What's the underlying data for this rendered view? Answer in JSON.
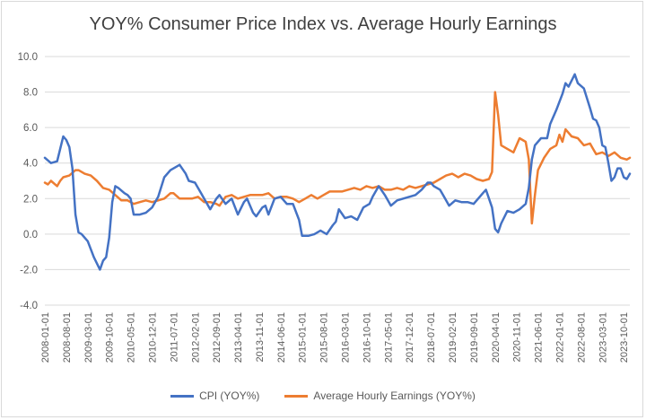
{
  "chart_data": {
    "type": "line",
    "title": "YOY% Consumer Price Index vs. Average Hourly Earnings",
    "xlabel": "",
    "ylabel": "",
    "ylim": [
      -4.0,
      10.0
    ],
    "yticks": [
      -4.0,
      -2.0,
      0.0,
      2.0,
      4.0,
      6.0,
      8.0,
      10.0
    ],
    "ytick_labels": [
      "-4.0",
      "-2.0",
      "0.0",
      "2.0",
      "4.0",
      "6.0",
      "8.0",
      "10.0"
    ],
    "x_start": "2008-01",
    "x_end": "2023-12",
    "xtick_labels": [
      "2008-01-01",
      "2008-08-01",
      "2009-03-01",
      "2009-10-01",
      "2010-05-01",
      "2010-12-01",
      "2011-07-01",
      "2012-02-01",
      "2012-09-01",
      "2013-04-01",
      "2013-11-01",
      "2014-06-01",
      "2015-01-01",
      "2015-08-01",
      "2016-03-01",
      "2016-10-01",
      "2017-05-01",
      "2017-12-01",
      "2018-07-01",
      "2019-02-01",
      "2019-09-01",
      "2020-04-01",
      "2020-11-01",
      "2021-06-01",
      "2022-01-01",
      "2022-08-01",
      "2023-03-01",
      "2023-10-01"
    ],
    "grid": true,
    "legend": "bottom",
    "series": [
      {
        "name": "CPI (YOY%)",
        "color": "#4472c4",
        "points": [
          [
            "2008-01",
            4.3
          ],
          [
            "2008-03",
            4.0
          ],
          [
            "2008-05",
            4.1
          ],
          [
            "2008-07",
            5.5
          ],
          [
            "2008-08",
            5.3
          ],
          [
            "2008-09",
            4.9
          ],
          [
            "2008-10",
            3.7
          ],
          [
            "2008-11",
            1.1
          ],
          [
            "2008-12",
            0.1
          ],
          [
            "2009-01",
            0.0
          ],
          [
            "2009-03",
            -0.4
          ],
          [
            "2009-05",
            -1.3
          ],
          [
            "2009-07",
            -2.0
          ],
          [
            "2009-08",
            -1.5
          ],
          [
            "2009-09",
            -1.3
          ],
          [
            "2009-10",
            -0.2
          ],
          [
            "2009-11",
            1.8
          ],
          [
            "2009-12",
            2.7
          ],
          [
            "2010-01",
            2.6
          ],
          [
            "2010-03",
            2.3
          ],
          [
            "2010-04",
            2.2
          ],
          [
            "2010-05",
            2.0
          ],
          [
            "2010-06",
            1.1
          ],
          [
            "2010-08",
            1.1
          ],
          [
            "2010-10",
            1.2
          ],
          [
            "2010-12",
            1.5
          ],
          [
            "2011-02",
            2.1
          ],
          [
            "2011-04",
            3.2
          ],
          [
            "2011-06",
            3.6
          ],
          [
            "2011-09",
            3.9
          ],
          [
            "2011-11",
            3.4
          ],
          [
            "2011-12",
            3.0
          ],
          [
            "2012-02",
            2.9
          ],
          [
            "2012-04",
            2.3
          ],
          [
            "2012-06",
            1.7
          ],
          [
            "2012-07",
            1.4
          ],
          [
            "2012-09",
            2.0
          ],
          [
            "2012-10",
            2.2
          ],
          [
            "2012-12",
            1.7
          ],
          [
            "2013-02",
            2.0
          ],
          [
            "2013-04",
            1.1
          ],
          [
            "2013-06",
            1.8
          ],
          [
            "2013-07",
            2.0
          ],
          [
            "2013-09",
            1.2
          ],
          [
            "2013-10",
            1.0
          ],
          [
            "2013-12",
            1.5
          ],
          [
            "2014-01",
            1.6
          ],
          [
            "2014-02",
            1.1
          ],
          [
            "2014-04",
            2.0
          ],
          [
            "2014-06",
            2.1
          ],
          [
            "2014-08",
            1.7
          ],
          [
            "2014-10",
            1.7
          ],
          [
            "2014-12",
            0.8
          ],
          [
            "2015-01",
            -0.1
          ],
          [
            "2015-03",
            -0.1
          ],
          [
            "2015-05",
            0.0
          ],
          [
            "2015-07",
            0.2
          ],
          [
            "2015-09",
            0.0
          ],
          [
            "2015-11",
            0.5
          ],
          [
            "2015-12",
            0.7
          ],
          [
            "2016-01",
            1.4
          ],
          [
            "2016-03",
            0.9
          ],
          [
            "2016-05",
            1.0
          ],
          [
            "2016-07",
            0.8
          ],
          [
            "2016-09",
            1.5
          ],
          [
            "2016-11",
            1.7
          ],
          [
            "2016-12",
            2.1
          ],
          [
            "2017-02",
            2.7
          ],
          [
            "2017-04",
            2.2
          ],
          [
            "2017-06",
            1.6
          ],
          [
            "2017-08",
            1.9
          ],
          [
            "2017-10",
            2.0
          ],
          [
            "2017-12",
            2.1
          ],
          [
            "2018-02",
            2.2
          ],
          [
            "2018-04",
            2.5
          ],
          [
            "2018-06",
            2.9
          ],
          [
            "2018-07",
            2.9
          ],
          [
            "2018-08",
            2.7
          ],
          [
            "2018-10",
            2.5
          ],
          [
            "2018-11",
            2.2
          ],
          [
            "2018-12",
            1.9
          ],
          [
            "2019-01",
            1.6
          ],
          [
            "2019-03",
            1.9
          ],
          [
            "2019-05",
            1.8
          ],
          [
            "2019-07",
            1.8
          ],
          [
            "2019-09",
            1.7
          ],
          [
            "2019-11",
            2.1
          ],
          [
            "2019-12",
            2.3
          ],
          [
            "2020-01",
            2.5
          ],
          [
            "2020-03",
            1.5
          ],
          [
            "2020-04",
            0.3
          ],
          [
            "2020-05",
            0.1
          ],
          [
            "2020-06",
            0.6
          ],
          [
            "2020-08",
            1.3
          ],
          [
            "2020-10",
            1.2
          ],
          [
            "2020-12",
            1.4
          ],
          [
            "2021-02",
            1.7
          ],
          [
            "2021-03",
            2.6
          ],
          [
            "2021-04",
            4.2
          ],
          [
            "2021-05",
            5.0
          ],
          [
            "2021-07",
            5.4
          ],
          [
            "2021-09",
            5.4
          ],
          [
            "2021-10",
            6.2
          ],
          [
            "2021-12",
            7.0
          ],
          [
            "2022-02",
            7.9
          ],
          [
            "2022-03",
            8.5
          ],
          [
            "2022-04",
            8.3
          ],
          [
            "2022-06",
            9.0
          ],
          [
            "2022-07",
            8.5
          ],
          [
            "2022-09",
            8.2
          ],
          [
            "2022-11",
            7.1
          ],
          [
            "2022-12",
            6.5
          ],
          [
            "2023-01",
            6.4
          ],
          [
            "2023-02",
            6.0
          ],
          [
            "2023-03",
            5.0
          ],
          [
            "2023-04",
            4.9
          ],
          [
            "2023-05",
            4.0
          ],
          [
            "2023-06",
            3.0
          ],
          [
            "2023-07",
            3.2
          ],
          [
            "2023-08",
            3.7
          ],
          [
            "2023-09",
            3.7
          ],
          [
            "2023-10",
            3.2
          ],
          [
            "2023-11",
            3.1
          ],
          [
            "2023-12",
            3.4
          ]
        ]
      },
      {
        "name": "Average Hourly Earnings (YOY%)",
        "color": "#ed7d31",
        "points": [
          [
            "2008-01",
            2.9
          ],
          [
            "2008-02",
            2.8
          ],
          [
            "2008-03",
            3.0
          ],
          [
            "2008-05",
            2.7
          ],
          [
            "2008-06",
            3.0
          ],
          [
            "2008-07",
            3.2
          ],
          [
            "2008-09",
            3.3
          ],
          [
            "2008-11",
            3.6
          ],
          [
            "2008-12",
            3.6
          ],
          [
            "2009-02",
            3.4
          ],
          [
            "2009-04",
            3.3
          ],
          [
            "2009-06",
            3.0
          ],
          [
            "2009-08",
            2.6
          ],
          [
            "2009-10",
            2.5
          ],
          [
            "2009-12",
            2.2
          ],
          [
            "2010-02",
            1.9
          ],
          [
            "2010-04",
            1.9
          ],
          [
            "2010-06",
            1.7
          ],
          [
            "2010-08",
            1.8
          ],
          [
            "2010-10",
            1.9
          ],
          [
            "2010-12",
            1.8
          ],
          [
            "2011-02",
            1.9
          ],
          [
            "2011-04",
            2.0
          ],
          [
            "2011-06",
            2.3
          ],
          [
            "2011-07",
            2.3
          ],
          [
            "2011-09",
            2.0
          ],
          [
            "2011-11",
            2.0
          ],
          [
            "2012-01",
            2.0
          ],
          [
            "2012-03",
            2.1
          ],
          [
            "2012-05",
            1.8
          ],
          [
            "2012-07",
            1.8
          ],
          [
            "2012-09",
            1.7
          ],
          [
            "2012-10",
            1.6
          ],
          [
            "2012-12",
            2.1
          ],
          [
            "2013-02",
            2.2
          ],
          [
            "2013-04",
            2.0
          ],
          [
            "2013-06",
            2.1
          ],
          [
            "2013-08",
            2.2
          ],
          [
            "2013-10",
            2.2
          ],
          [
            "2013-12",
            2.2
          ],
          [
            "2014-02",
            2.3
          ],
          [
            "2014-04",
            2.0
          ],
          [
            "2014-06",
            2.1
          ],
          [
            "2014-08",
            2.1
          ],
          [
            "2014-10",
            2.0
          ],
          [
            "2014-12",
            1.8
          ],
          [
            "2015-02",
            2.0
          ],
          [
            "2015-04",
            2.2
          ],
          [
            "2015-06",
            2.0
          ],
          [
            "2015-08",
            2.2
          ],
          [
            "2015-10",
            2.4
          ],
          [
            "2015-12",
            2.4
          ],
          [
            "2016-02",
            2.4
          ],
          [
            "2016-04",
            2.5
          ],
          [
            "2016-06",
            2.6
          ],
          [
            "2016-08",
            2.5
          ],
          [
            "2016-10",
            2.7
          ],
          [
            "2016-12",
            2.6
          ],
          [
            "2017-02",
            2.7
          ],
          [
            "2017-04",
            2.5
          ],
          [
            "2017-06",
            2.5
          ],
          [
            "2017-08",
            2.6
          ],
          [
            "2017-10",
            2.5
          ],
          [
            "2017-12",
            2.7
          ],
          [
            "2018-02",
            2.6
          ],
          [
            "2018-04",
            2.7
          ],
          [
            "2018-06",
            2.8
          ],
          [
            "2018-08",
            2.9
          ],
          [
            "2018-10",
            3.1
          ],
          [
            "2018-12",
            3.3
          ],
          [
            "2019-02",
            3.4
          ],
          [
            "2019-04",
            3.2
          ],
          [
            "2019-06",
            3.4
          ],
          [
            "2019-08",
            3.3
          ],
          [
            "2019-10",
            3.1
          ],
          [
            "2019-12",
            3.0
          ],
          [
            "2020-02",
            3.1
          ],
          [
            "2020-03",
            3.5
          ],
          [
            "2020-04",
            8.0
          ],
          [
            "2020-05",
            6.7
          ],
          [
            "2020-06",
            5.0
          ],
          [
            "2020-08",
            4.8
          ],
          [
            "2020-10",
            4.6
          ],
          [
            "2020-12",
            5.4
          ],
          [
            "2021-02",
            5.2
          ],
          [
            "2021-03",
            4.2
          ],
          [
            "2021-04",
            0.6
          ],
          [
            "2021-05",
            2.2
          ],
          [
            "2021-06",
            3.6
          ],
          [
            "2021-08",
            4.3
          ],
          [
            "2021-10",
            4.8
          ],
          [
            "2021-12",
            5.0
          ],
          [
            "2022-01",
            5.6
          ],
          [
            "2022-02",
            5.2
          ],
          [
            "2022-03",
            5.9
          ],
          [
            "2022-05",
            5.5
          ],
          [
            "2022-07",
            5.4
          ],
          [
            "2022-09",
            5.0
          ],
          [
            "2022-11",
            5.1
          ],
          [
            "2022-12",
            4.8
          ],
          [
            "2023-01",
            4.5
          ],
          [
            "2023-03",
            4.6
          ],
          [
            "2023-05",
            4.4
          ],
          [
            "2023-07",
            4.6
          ],
          [
            "2023-09",
            4.3
          ],
          [
            "2023-11",
            4.2
          ],
          [
            "2023-12",
            4.3
          ]
        ]
      }
    ]
  }
}
